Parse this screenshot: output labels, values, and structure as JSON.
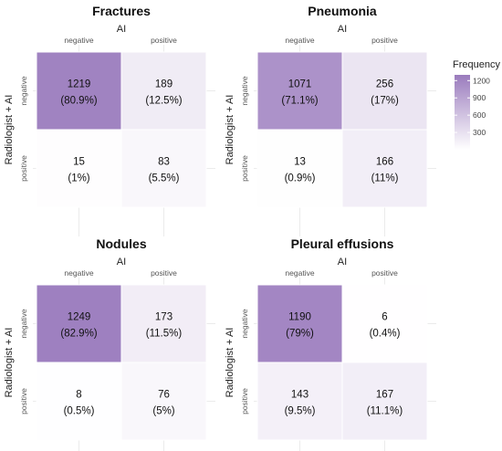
{
  "colors": {
    "low": "#ffffff",
    "high": "#9a7bbd",
    "grid": "#ebebeb"
  },
  "legend": {
    "title": "Frequency",
    "ticks": [
      {
        "label": "1200",
        "value": 1200
      },
      {
        "label": "900",
        "value": 900
      },
      {
        "label": "600",
        "value": 600
      },
      {
        "label": "300",
        "value": 300
      }
    ],
    "min": 0,
    "max": 1300
  },
  "chart_data": [
    {
      "type": "heatmap",
      "title": "Fractures",
      "xlabel": "AI",
      "ylabel": "Radiologist + AI",
      "x_categories": [
        "negative",
        "positive"
      ],
      "y_categories": [
        "negative",
        "positive"
      ],
      "cells": [
        {
          "row": 0,
          "col": 0,
          "count": 1219,
          "pct": "(80.9%)"
        },
        {
          "row": 0,
          "col": 1,
          "count": 189,
          "pct": "(12.5%)"
        },
        {
          "row": 1,
          "col": 0,
          "count": 15,
          "pct": "(1%)"
        },
        {
          "row": 1,
          "col": 1,
          "count": 83,
          "pct": "(5.5%)"
        }
      ]
    },
    {
      "type": "heatmap",
      "title": "Pneumonia",
      "xlabel": "AI",
      "ylabel": "Radiologist + AI",
      "x_categories": [
        "negative",
        "positive"
      ],
      "y_categories": [
        "negative",
        "positive"
      ],
      "cells": [
        {
          "row": 0,
          "col": 0,
          "count": 1071,
          "pct": "(71.1%)"
        },
        {
          "row": 0,
          "col": 1,
          "count": 256,
          "pct": "(17%)"
        },
        {
          "row": 1,
          "col": 0,
          "count": 13,
          "pct": "(0.9%)"
        },
        {
          "row": 1,
          "col": 1,
          "count": 166,
          "pct": "(11%)"
        }
      ]
    },
    {
      "type": "heatmap",
      "title": "Nodules",
      "xlabel": "AI",
      "ylabel": "Radiologist + AI",
      "x_categories": [
        "negative",
        "positive"
      ],
      "y_categories": [
        "negative",
        "positive"
      ],
      "cells": [
        {
          "row": 0,
          "col": 0,
          "count": 1249,
          "pct": "(82.9%)"
        },
        {
          "row": 0,
          "col": 1,
          "count": 173,
          "pct": "(11.5%)"
        },
        {
          "row": 1,
          "col": 0,
          "count": 8,
          "pct": "(0.5%)"
        },
        {
          "row": 1,
          "col": 1,
          "count": 76,
          "pct": "(5%)"
        }
      ]
    },
    {
      "type": "heatmap",
      "title": "Pleural effusions",
      "xlabel": "AI",
      "ylabel": "Radiologist + AI",
      "x_categories": [
        "negative",
        "positive"
      ],
      "y_categories": [
        "negative",
        "positive"
      ],
      "cells": [
        {
          "row": 0,
          "col": 0,
          "count": 1190,
          "pct": "(79%)"
        },
        {
          "row": 0,
          "col": 1,
          "count": 6,
          "pct": "(0.4%)"
        },
        {
          "row": 1,
          "col": 0,
          "count": 143,
          "pct": "(9.5%)"
        },
        {
          "row": 1,
          "col": 1,
          "count": 167,
          "pct": "(11.1%)"
        }
      ]
    }
  ]
}
